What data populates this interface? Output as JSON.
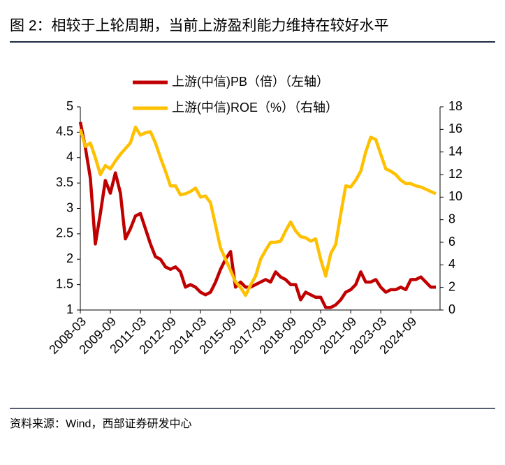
{
  "chart_data": {
    "type": "line",
    "title": "图 2：相较于上轮周期，当前上游盈利能力维持在较好水平",
    "source": "资料来源：Wind，西部证券研发中心",
    "categories": [
      "2008-03",
      null,
      null,
      null,
      null,
      null,
      "2009-09",
      null,
      null,
      null,
      null,
      null,
      "2011-03",
      null,
      null,
      null,
      null,
      null,
      "2012-09",
      null,
      null,
      null,
      null,
      null,
      "2014-03",
      null,
      null,
      null,
      null,
      null,
      "2015-09",
      null,
      null,
      null,
      null,
      null,
      "2017-03",
      null,
      null,
      null,
      null,
      null,
      "2018-09",
      null,
      null,
      null,
      null,
      null,
      "2020-03",
      null,
      null,
      null,
      null,
      null,
      "2021-09",
      null,
      null,
      null,
      null,
      null,
      "2023-03",
      null,
      null,
      null,
      null,
      null,
      "2024-09",
      null,
      null,
      null,
      null,
      null
    ],
    "series": [
      {
        "name": "上游(中信)PB（倍）（左轴）",
        "color": "#c00000",
        "axis": "y",
        "values": [
          4.7,
          4.2,
          3.6,
          2.3,
          2.9,
          3.55,
          3.3,
          3.7,
          3.3,
          2.4,
          2.6,
          2.85,
          2.9,
          2.6,
          2.3,
          2.05,
          2.0,
          1.85,
          1.8,
          1.85,
          1.75,
          1.45,
          1.5,
          1.45,
          1.35,
          1.3,
          1.35,
          1.55,
          1.8,
          2.0,
          2.15,
          1.45,
          1.55,
          1.45,
          1.45,
          1.5,
          1.55,
          1.6,
          1.55,
          1.75,
          1.65,
          1.6,
          1.5,
          1.5,
          1.2,
          1.35,
          1.3,
          1.25,
          1.25,
          1.05,
          1.05,
          1.1,
          1.2,
          1.35,
          1.4,
          1.5,
          1.75,
          1.55,
          1.55,
          1.6,
          1.45,
          1.35,
          1.4,
          1.4,
          1.45,
          1.4,
          1.6,
          1.6,
          1.65,
          1.55,
          1.45,
          1.45
        ]
      },
      {
        "name": "上游(中信)ROE（%）（右轴）",
        "color": "#ffc000",
        "axis": "y2",
        "values": [
          16,
          14.5,
          14.8,
          13.5,
          12,
          12.8,
          12.5,
          13.2,
          13.8,
          14.3,
          14.8,
          16.2,
          15.5,
          15.7,
          15.8,
          14.8,
          13.5,
          12.3,
          11,
          11,
          10.2,
          10.3,
          10.5,
          10.8,
          10,
          10.1,
          9.5,
          7.5,
          5.5,
          4.5,
          3.5,
          2.5,
          2,
          1.3,
          2.2,
          3,
          4.5,
          5.3,
          6,
          6,
          6.1,
          7,
          7.8,
          7,
          6.5,
          6.4,
          6.1,
          6.3,
          4.5,
          3,
          5,
          5.8,
          8.5,
          11,
          10.9,
          11.5,
          12.3,
          14,
          15.3,
          15.1,
          13.8,
          12.5,
          12.3,
          12,
          11.5,
          11.2,
          11.2,
          11.0,
          10.9,
          10.7,
          10.5,
          10.3
        ]
      }
    ],
    "ylim": [
      1,
      5
    ],
    "yticks": [
      1,
      1.5,
      2,
      2.5,
      3,
      3.5,
      4,
      4.5,
      5
    ],
    "y2lim": [
      0,
      18
    ],
    "y2ticks": [
      0,
      2,
      4,
      6,
      8,
      10,
      12,
      14,
      16,
      18
    ],
    "grid": false
  }
}
